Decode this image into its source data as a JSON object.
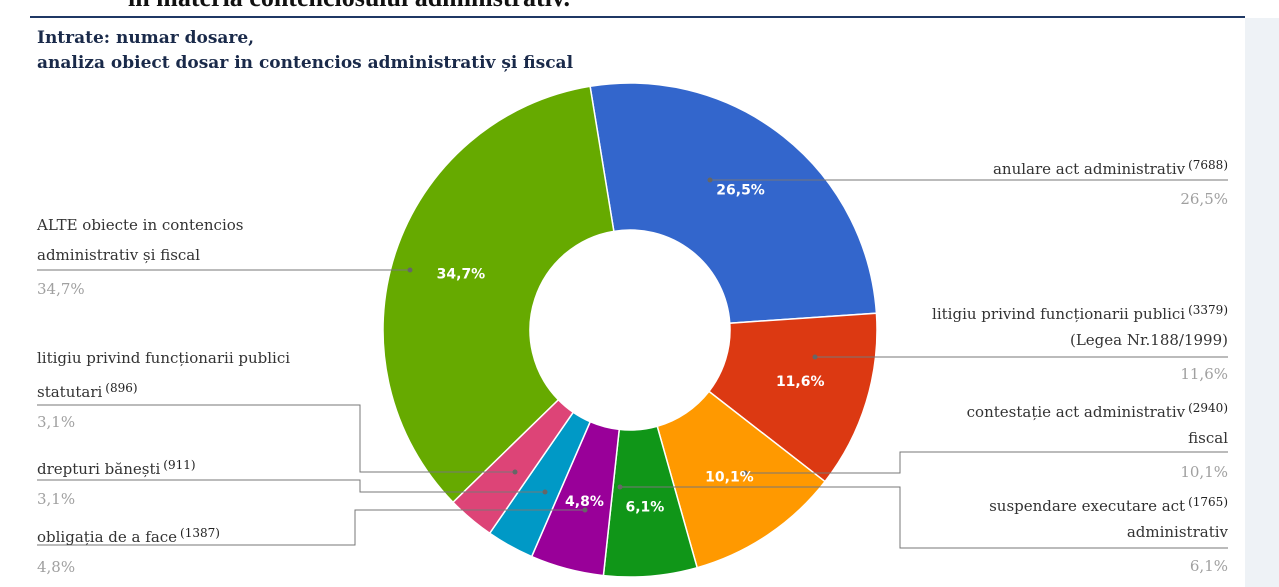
{
  "header_fragment": "in materia contenciosului administrativ.",
  "chart_data": {
    "type": "donut",
    "title": "Intrate: numar dosare,",
    "subtitle": "analiza obiect dosar in contencios administrativ și fiscal",
    "categories": [
      [
        "anulare act administrativ"
      ],
      [
        "litigiu privind funcționarii publici",
        "(Legea Nr.188/1999)"
      ],
      [
        "contestație act administrativ",
        "fiscal"
      ],
      [
        "suspendare executare act",
        "administrativ"
      ],
      [
        "obligația de a face"
      ],
      [
        "drepturi bănești"
      ],
      [
        "litigiu privind funcționarii publici",
        "statutari"
      ],
      [
        "ALTE obiecte in contencios",
        "administrativ și fiscal"
      ]
    ],
    "counts": [
      "(7688)",
      "(3379)",
      "(2940)",
      "(1765)",
      "(1387)",
      "(911)",
      "(896)",
      null
    ],
    "values": [
      26.5,
      11.6,
      10.1,
      6.1,
      4.8,
      3.1,
      3.1,
      34.7
    ],
    "value_labels": [
      "26,5%",
      "11,6%",
      "10,1%",
      "6,1%",
      "4,8%",
      "3,1%",
      "3,1%",
      "34,7%"
    ],
    "colors": [
      "#3366cc",
      "#dc3912",
      "#ff9900",
      "#109618",
      "#990099",
      "#0099c6",
      "#dd4477",
      "#66aa00"
    ]
  }
}
